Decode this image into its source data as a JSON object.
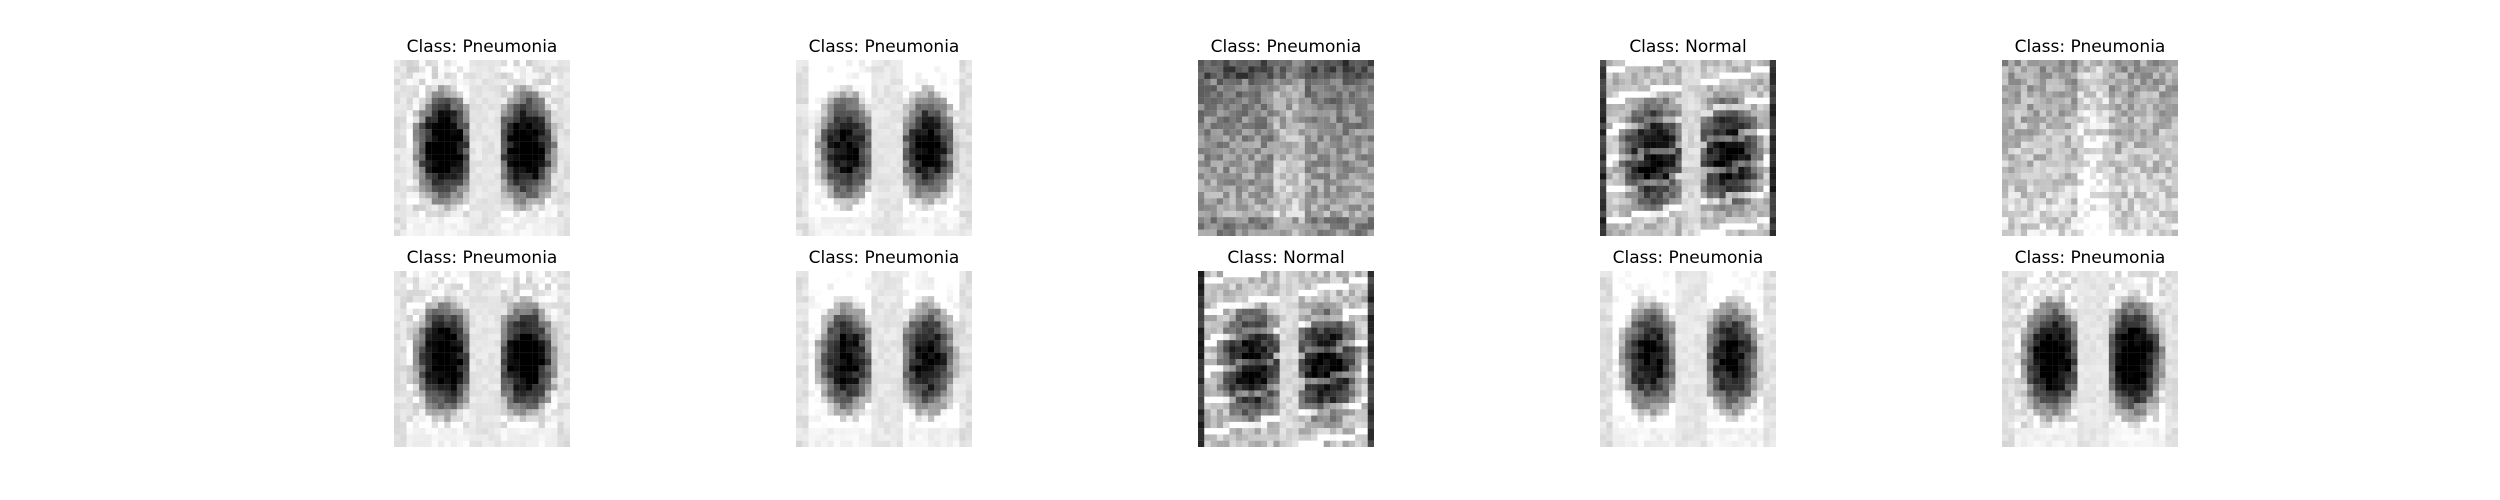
{
  "figure": {
    "panels": [
      {
        "title": "Class: Pneumonia",
        "seed": 11,
        "style": "lungs"
      },
      {
        "title": "Class: Pneumonia",
        "seed": 23,
        "style": "lungs-bright"
      },
      {
        "title": "Class: Pneumonia",
        "seed": 37,
        "style": "hazy"
      },
      {
        "title": "Class: Normal",
        "seed": 41,
        "style": "ribs"
      },
      {
        "title": "Class: Pneumonia",
        "seed": 53,
        "style": "hazy-bright"
      },
      {
        "title": "Class: Pneumonia",
        "seed": 61,
        "style": "lungs"
      },
      {
        "title": "Class: Pneumonia",
        "seed": 73,
        "style": "lungs-bright"
      },
      {
        "title": "Class: Normal",
        "seed": 89,
        "style": "ribs"
      },
      {
        "title": "Class: Pneumonia",
        "seed": 97,
        "style": "lungs-bright"
      },
      {
        "title": "Class: Pneumonia",
        "seed": 101,
        "style": "lungs"
      }
    ]
  }
}
